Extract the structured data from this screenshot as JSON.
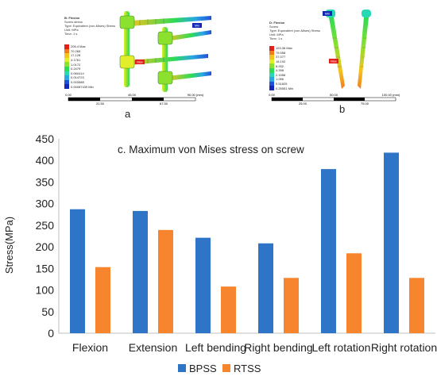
{
  "panel_a": {
    "letter": "a",
    "header": [
      "B: Flexion",
      "Screw stress",
      "Type: Equivalent (von-Mises) Stress",
      "Unit: MPa",
      "Time: 1 s"
    ],
    "legend_values": [
      "206.4 Max",
      "70.265",
      "17.128",
      "4.1761",
      "1.0172",
      "0.2479",
      "0.060414",
      "0.014723",
      "0.003588",
      "0.00087439 Min"
    ],
    "scale_labels": [
      "0.00",
      "45.00",
      "90.00 (mm)"
    ],
    "scale_sub_labels": [
      "22.50",
      "67.50"
    ],
    "probe_max": "Max",
    "probe_min": "Min"
  },
  "panel_b": {
    "letter": "b",
    "header": [
      "D: Flexion",
      "Screw",
      "Type: Equivalent (von-Mises) Stress",
      "Unit: MPa",
      "Time: 1 s"
    ],
    "legend_values": [
      "153.36 Max",
      "75.558",
      "37.077",
      "18.192",
      "8.932",
      "4.398",
      "2.1558",
      "1.056",
      "0.51825",
      "0.25551 Min"
    ],
    "scale_labels": [
      "0.00",
      "50.00",
      "100.00 (mm)"
    ],
    "scale_sub_labels": [
      "25.00",
      "75.00"
    ],
    "probe_max": "Max",
    "probe_min": "Min"
  },
  "colors": {
    "bpss": "#2E75C8",
    "rtss": "#F7852E",
    "legend_scale": [
      "#E2201B",
      "#F2791C",
      "#F6C21F",
      "#E3EE2B",
      "#8BE12E",
      "#2DDB55",
      "#26D9B4",
      "#2AA7E3",
      "#2051D8",
      "#1427B5"
    ]
  },
  "chart_data": {
    "type": "bar",
    "title": "c. Maximum von Mises stress on screw",
    "ylabel": "Stress(MPa)",
    "xlabel": "",
    "categories": [
      "Flexion",
      "Extension",
      "Left bending",
      "Right bending",
      "Left rotation",
      "Right rotation"
    ],
    "series": [
      {
        "name": "BPSS",
        "values": [
          287,
          283,
          221,
          208,
          380,
          418
        ]
      },
      {
        "name": "RTSS",
        "values": [
          153,
          239,
          108,
          128,
          185,
          128
        ]
      }
    ],
    "ylim": [
      0,
      450
    ],
    "yticks": [
      0,
      50,
      100,
      150,
      200,
      250,
      300,
      350,
      400,
      450
    ],
    "grid": false,
    "legend_position": "bottom"
  }
}
